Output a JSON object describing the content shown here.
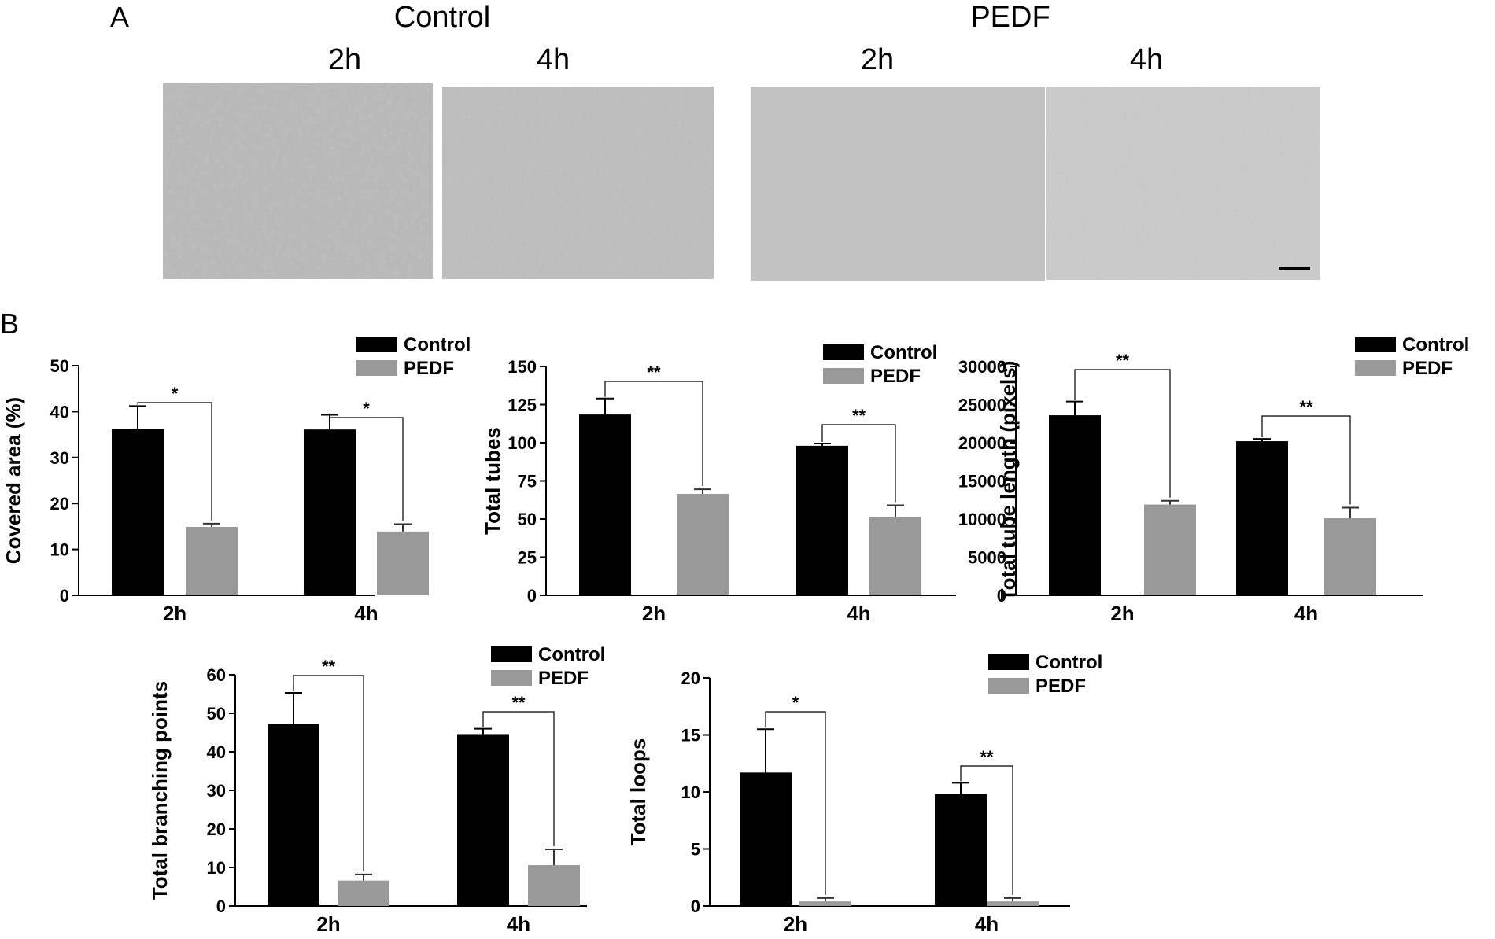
{
  "panel_a": {
    "label": "A",
    "groups": [
      {
        "title": "Control",
        "times": [
          "2h",
          "4h"
        ]
      },
      {
        "title": "PEDF",
        "times": [
          "2h",
          "4h"
        ]
      }
    ]
  },
  "panel_b": {
    "label": "B"
  },
  "colors": {
    "control": "#000000",
    "pedf": "#999999"
  },
  "chart_data": [
    {
      "type": "bar",
      "ylabel": "Covered area (%)",
      "categories": [
        "2h",
        "4h"
      ],
      "series": [
        {
          "name": "Control",
          "values": [
            36.3,
            36.1
          ],
          "errors": [
            4.9,
            3.2
          ]
        },
        {
          "name": "PEDF",
          "values": [
            14.9,
            13.9
          ],
          "errors": [
            0.7,
            1.6
          ]
        }
      ],
      "ylim": [
        0,
        50
      ],
      "yticks": [
        "0",
        "10",
        "20",
        "30",
        "40",
        "50"
      ],
      "significance": [
        "*",
        "*"
      ],
      "legend": "top-right"
    },
    {
      "type": "bar",
      "ylabel": "Total tubes",
      "categories": [
        "2h",
        "4h"
      ],
      "series": [
        {
          "name": "Control",
          "values": [
            118.5,
            98.0
          ],
          "errors": [
            10.5,
            1.5
          ]
        },
        {
          "name": "PEDF",
          "values": [
            66.5,
            51.5
          ],
          "errors": [
            3.0,
            7.5
          ]
        }
      ],
      "ylim": [
        0,
        150
      ],
      "yticks": [
        "0",
        "25",
        "50",
        "75",
        "100",
        "125",
        "150"
      ],
      "significance": [
        "**",
        "**"
      ],
      "legend": "top-right"
    },
    {
      "type": "bar",
      "ylabel": "Total tube length (pixels)",
      "categories": [
        "2h",
        "4h"
      ],
      "series": [
        {
          "name": "Control",
          "values": [
            23600,
            20200
          ],
          "errors": [
            1800,
            300
          ]
        },
        {
          "name": "PEDF",
          "values": [
            11900,
            10100
          ],
          "errors": [
            500,
            1400
          ]
        }
      ],
      "ylim": [
        0,
        30000
      ],
      "yticks": [
        "0",
        "5000",
        "10000",
        "15000",
        "20000",
        "25000",
        "30000"
      ],
      "significance": [
        "**",
        "**"
      ],
      "legend": "top-right"
    },
    {
      "type": "bar",
      "ylabel": "Total branching points",
      "categories": [
        "2h",
        "4h"
      ],
      "series": [
        {
          "name": "Control",
          "values": [
            47.3,
            44.6
          ],
          "errors": [
            8.0,
            1.4
          ]
        },
        {
          "name": "PEDF",
          "values": [
            6.6,
            10.6
          ],
          "errors": [
            1.6,
            4.1
          ]
        }
      ],
      "ylim": [
        0,
        60
      ],
      "yticks": [
        "0",
        "10",
        "20",
        "30",
        "40",
        "50",
        "60"
      ],
      "significance": [
        "**",
        "**"
      ],
      "legend": "top-right"
    },
    {
      "type": "bar",
      "ylabel": "Total loops",
      "categories": [
        "2h",
        "4h"
      ],
      "series": [
        {
          "name": "Control",
          "values": [
            11.7,
            9.8
          ],
          "errors": [
            3.8,
            1.0
          ]
        },
        {
          "name": "PEDF",
          "values": [
            0.4,
            0.4
          ],
          "errors": [
            0.3,
            0.3
          ]
        }
      ],
      "ylim": [
        0,
        20
      ],
      "yticks": [
        "0",
        "5",
        "10",
        "15",
        "20"
      ],
      "significance": [
        "*",
        "**"
      ],
      "legend": "top-right"
    }
  ]
}
